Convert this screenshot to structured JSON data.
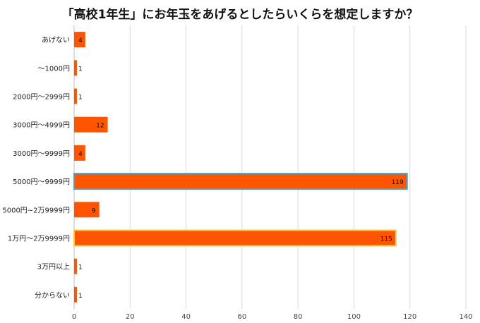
{
  "chart_data": {
    "type": "bar",
    "orientation": "horizontal",
    "title": "「高校1年生」にお年玉をあげるとしたらいくらを想定しますか？",
    "categories": [
      "あげない",
      "～1000円",
      "2000円～2999円",
      "3000円～4999円",
      "3000円～9999円",
      "5000円～9999円",
      "5000円~2万9999円",
      "1万円～2万9999円",
      "3万円以上",
      "分からない"
    ],
    "values": [
      4,
      1,
      1,
      12,
      4,
      119,
      9,
      115,
      1,
      1
    ],
    "xlim": [
      0,
      140
    ],
    "xticks": [
      0,
      20,
      40,
      60,
      80,
      100,
      120,
      140
    ],
    "grid": "vertical",
    "legend": "none",
    "bar_color": "#ff5500",
    "highlight_outlines": {
      "5": "#4aa3c8",
      "7": "#f2c94c"
    }
  }
}
